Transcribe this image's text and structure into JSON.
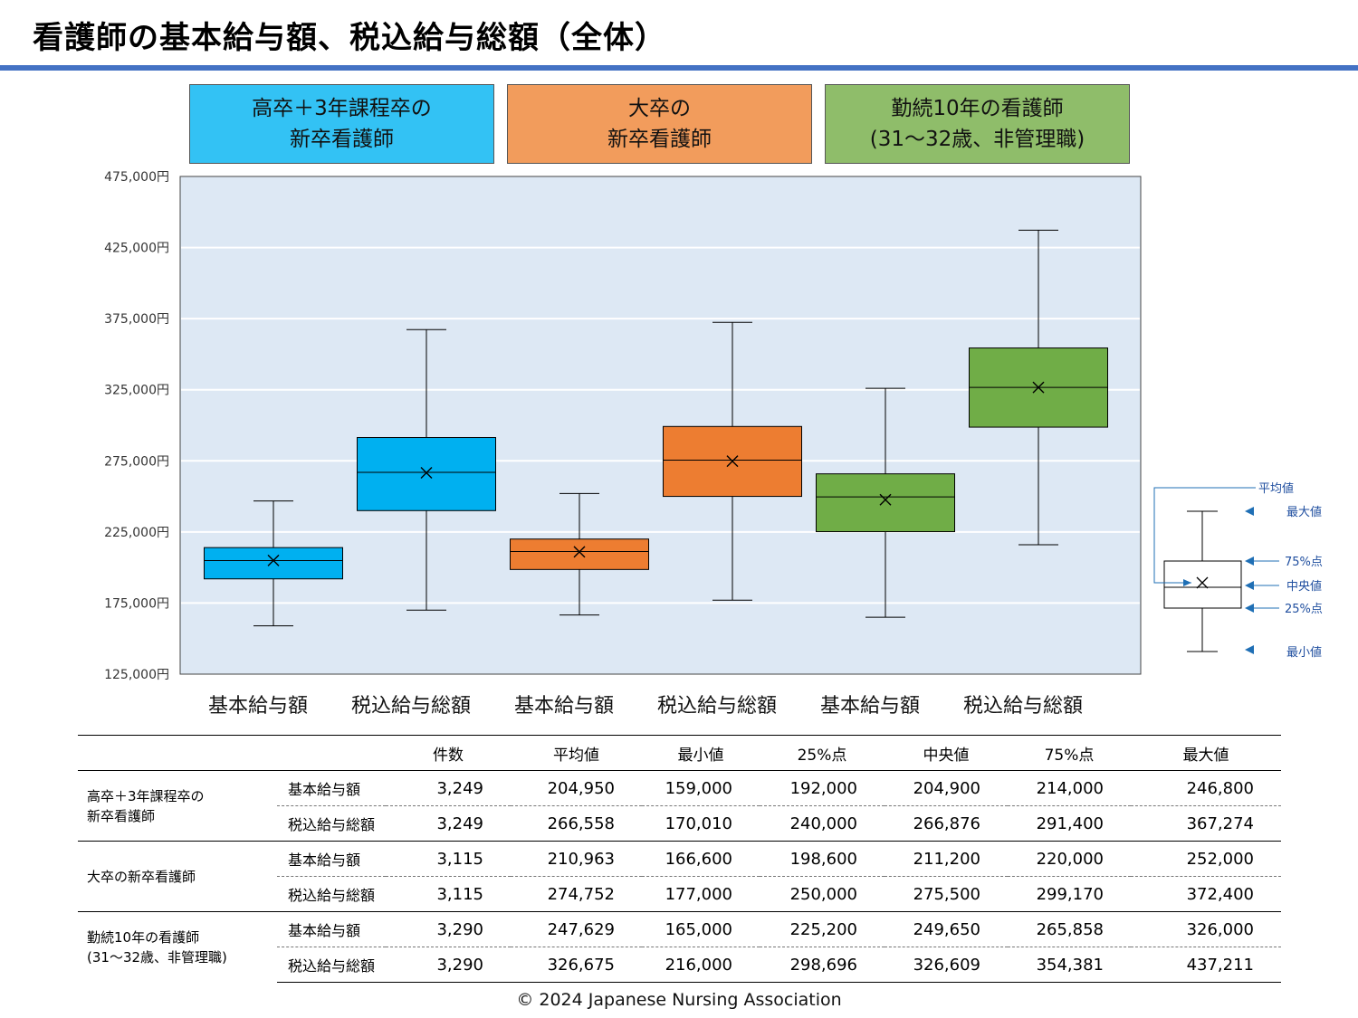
{
  "title": "看護師の基本給与額、税込給与総額（全体）",
  "colors": {
    "accent_rule": "#4472c4",
    "plot_bg": "#dde8f4",
    "legend_arrow": "#1f6fb5"
  },
  "groups": [
    {
      "line1": "高卒＋3年課程卒の",
      "line2": "新卒看護師",
      "color": "#33c2f4"
    },
    {
      "line1": "大卒の",
      "line2": "新卒看護師",
      "color": "#f29c5c"
    },
    {
      "line1": "勤続10年の看護師",
      "line2": "(31～32歳、非管理職)",
      "color": "#8fbd6a"
    }
  ],
  "chart_data": {
    "type": "box",
    "yticks": [
      "475,000円",
      "425,000円",
      "375,000円",
      "325,000円",
      "275,000円",
      "225,000円",
      "175,000円",
      "125,000円"
    ],
    "ylim": [
      125000,
      475000
    ],
    "grid": true,
    "boxes": [
      {
        "category": "基本給与額",
        "min": 159000,
        "q1": 192000,
        "median": 204900,
        "q3": 214000,
        "max": 246800,
        "mean": 204950,
        "color": "#00b0f0"
      },
      {
        "category": "税込給与総額",
        "min": 170010,
        "q1": 240000,
        "median": 266876,
        "q3": 291400,
        "max": 367274,
        "mean": 266558,
        "color": "#00b0f0"
      },
      {
        "category": "基本給与額",
        "min": 166600,
        "q1": 198600,
        "median": 211200,
        "q3": 220000,
        "max": 252000,
        "mean": 210963,
        "color": "#ed7d31"
      },
      {
        "category": "税込給与総額",
        "min": 177000,
        "q1": 250000,
        "median": 275500,
        "q3": 299170,
        "max": 372400,
        "mean": 274752,
        "color": "#ed7d31"
      },
      {
        "category": "基本給与額",
        "min": 165000,
        "q1": 225200,
        "median": 249650,
        "q3": 265858,
        "max": 326000,
        "mean": 247629,
        "color": "#70ad47"
      },
      {
        "category": "税込給与総額",
        "min": 216000,
        "q1": 298696,
        "median": 326609,
        "q3": 354381,
        "max": 437211,
        "mean": 326675,
        "color": "#70ad47"
      }
    ],
    "legend_labels": [
      "平均値",
      "最大値",
      "75%点",
      "中央値",
      "25%点",
      "最小値"
    ]
  },
  "table": {
    "headers": [
      "件数",
      "平均値",
      "最小値",
      "25%点",
      "中央値",
      "75%点",
      "最大値"
    ],
    "groups": [
      {
        "label_line1": "高卒＋3年課程卒の",
        "label_line2": "新卒看護師",
        "rows": [
          {
            "metric": "基本給与額",
            "values": [
              "3,249",
              "204,950",
              "159,000",
              "192,000",
              "204,900",
              "214,000",
              "246,800"
            ]
          },
          {
            "metric": "税込給与総額",
            "values": [
              "3,249",
              "266,558",
              "170,010",
              "240,000",
              "266,876",
              "291,400",
              "367,274"
            ]
          }
        ]
      },
      {
        "label_line1": "大卒の新卒看護師",
        "label_line2": "",
        "rows": [
          {
            "metric": "基本給与額",
            "values": [
              "3,115",
              "210,963",
              "166,600",
              "198,600",
              "211,200",
              "220,000",
              "252,000"
            ]
          },
          {
            "metric": "税込給与総額",
            "values": [
              "3,115",
              "274,752",
              "177,000",
              "250,000",
              "275,500",
              "299,170",
              "372,400"
            ]
          }
        ]
      },
      {
        "label_line1": "勤続10年の看護師",
        "label_line2": "(31～32歳、非管理職)",
        "rows": [
          {
            "metric": "基本給与額",
            "values": [
              "3,290",
              "247,629",
              "165,000",
              "225,200",
              "249,650",
              "265,858",
              "326,000"
            ]
          },
          {
            "metric": "税込給与総額",
            "values": [
              "3,290",
              "326,675",
              "216,000",
              "298,696",
              "326,609",
              "354,381",
              "437,211"
            ]
          }
        ]
      }
    ]
  },
  "copyright": "© 2024 Japanese Nursing Association"
}
